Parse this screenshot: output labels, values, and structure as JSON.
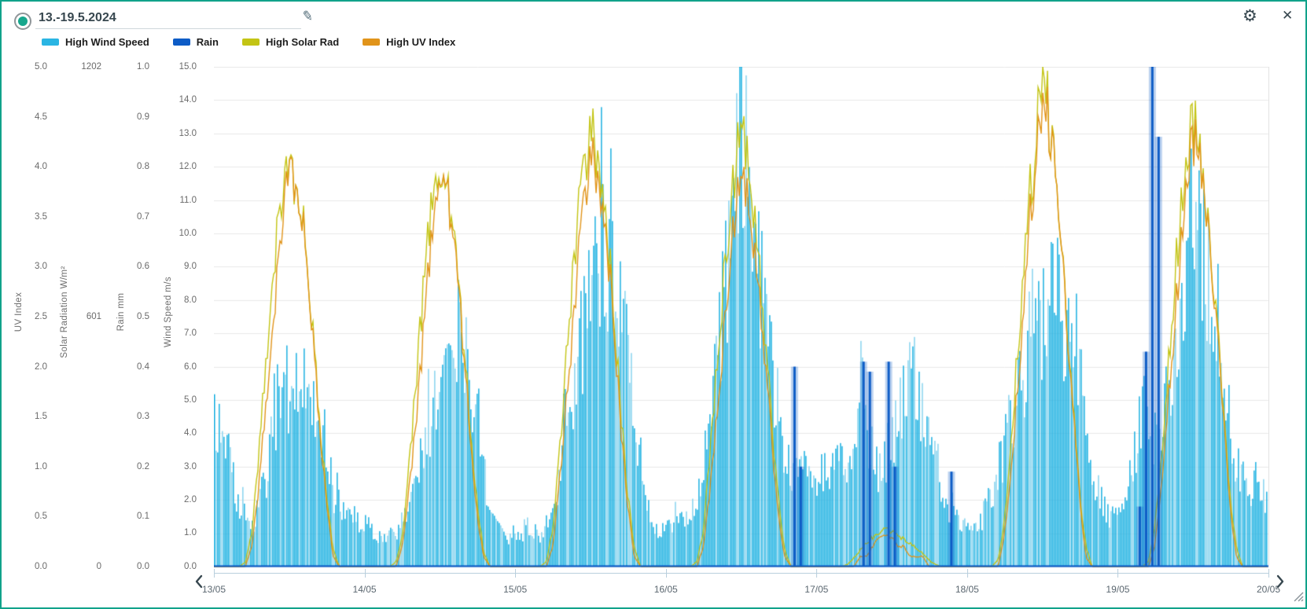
{
  "header": {
    "date_range": "13.-19.5.2024"
  },
  "icons": {
    "edit": "✎",
    "settings": "⚙",
    "close": "✕"
  },
  "colors": {
    "frame_border": "#10a28a",
    "radio_fill": "#17a78d",
    "wind": "#2ab5e3",
    "wind_light": "#8fd6ef",
    "rain": "#0d5cc6",
    "solar": "#c3c414",
    "uv": "#e1941a",
    "grid": "#e8e8e8"
  },
  "legend": [
    {
      "label": "High Wind Speed",
      "color": "#2ab5e3"
    },
    {
      "label": "Rain",
      "color": "#0d5cc6"
    },
    {
      "label": "High Solar Rad",
      "color": "#c3c414"
    },
    {
      "label": "High UV Index",
      "color": "#e1941a"
    }
  ],
  "axes": {
    "uv": {
      "title": "UV Index",
      "ticks": [
        "5.0",
        "4.5",
        "4.0",
        "3.5",
        "3.0",
        "2.5",
        "2.0",
        "1.5",
        "1.0",
        "0.5",
        "0.0"
      ]
    },
    "solar": {
      "title": "Solar Radiation W/m²",
      "ticks": [
        "1202",
        "601",
        "0"
      ]
    },
    "rain": {
      "title": "Rain mm",
      "ticks": [
        "1.0",
        "0.9",
        "0.8",
        "0.7",
        "0.6",
        "0.5",
        "0.4",
        "0.3",
        "0.2",
        "0.1",
        "0.0"
      ]
    },
    "wind": {
      "title": "Wind Speed m/s",
      "ticks": [
        "15.0",
        "14.0",
        "13.0",
        "12.0",
        "11.0",
        "10.0",
        "9.0",
        "8.0",
        "7.0",
        "6.0",
        "5.0",
        "4.0",
        "3.0",
        "2.0",
        "1.0",
        "0.0"
      ]
    }
  },
  "chart_data": {
    "type": "composite",
    "x_labels": [
      "13/05",
      "14/05",
      "15/05",
      "16/05",
      "17/05",
      "18/05",
      "19/05",
      "20/05"
    ],
    "days": 7,
    "points_per_day": 24,
    "grid": "horizontal, every 1 m/s of wind axis",
    "series": [
      {
        "name": "High Wind Speed",
        "type": "bar",
        "unit": "m/s",
        "axis_max": 15,
        "color": "#2ab5e3",
        "values": [
          4.5,
          4.0,
          3.6,
          2.6,
          1.8,
          1.5,
          1.2,
          1.8,
          2.6,
          3.4,
          4.5,
          5.0,
          5.4,
          5.8,
          6.2,
          5.6,
          5.0,
          4.6,
          3.4,
          2.2,
          1.8,
          1.8,
          1.5,
          1.3,
          1.3,
          1.1,
          0.9,
          0.9,
          1.1,
          0.9,
          1.3,
          1.8,
          2.6,
          3.4,
          4.2,
          4.8,
          5.4,
          6.0,
          6.6,
          7.2,
          6.4,
          5.6,
          4.6,
          3.0,
          1.8,
          1.3,
          1.1,
          0.9,
          0.9,
          0.9,
          1.3,
          1.1,
          0.9,
          1.3,
          1.8,
          2.8,
          4.2,
          5.4,
          6.4,
          7.4,
          8.2,
          9.0,
          9.8,
          9.2,
          8.6,
          7.8,
          6.2,
          4.2,
          2.6,
          1.8,
          1.3,
          1.1,
          1.1,
          1.3,
          1.8,
          1.3,
          1.8,
          2.2,
          3.0,
          4.6,
          6.2,
          8.0,
          9.6,
          11.2,
          14.3,
          12.0,
          10.4,
          9.0,
          7.6,
          6.2,
          4.6,
          3.4,
          3.0,
          2.6,
          3.0,
          2.6,
          2.6,
          3.0,
          2.6,
          3.0,
          3.4,
          3.0,
          3.4,
          6.7,
          4.2,
          3.4,
          3.0,
          3.4,
          3.8,
          4.6,
          5.4,
          6.0,
          5.2,
          4.6,
          3.8,
          3.0,
          2.2,
          1.8,
          1.5,
          1.3,
          1.3,
          1.1,
          1.3,
          1.8,
          2.2,
          3.0,
          3.8,
          4.6,
          5.4,
          6.0,
          6.6,
          7.2,
          7.6,
          8.0,
          8.4,
          7.8,
          7.2,
          7.8,
          6.0,
          4.2,
          3.0,
          2.2,
          1.8,
          1.5,
          1.5,
          1.8,
          2.6,
          3.8,
          5.0,
          4.2,
          3.4,
          4.2,
          5.4,
          6.6,
          7.8,
          10.2,
          11.6,
          10.6,
          9.4,
          7.6,
          6.4,
          5.0,
          3.8,
          3.0,
          2.6,
          2.2,
          2.6,
          2.2
        ]
      },
      {
        "name": "Rain",
        "type": "bar",
        "unit": "mm",
        "axis_max": 1.0,
        "color": "#0d5cc6",
        "values": [
          0,
          0,
          0,
          0,
          0,
          0,
          0,
          0,
          0,
          0,
          0,
          0,
          0,
          0,
          0,
          0,
          0,
          0,
          0,
          0,
          0,
          0,
          0,
          0,
          0,
          0,
          0,
          0,
          0,
          0,
          0,
          0,
          0,
          0,
          0,
          0,
          0,
          0,
          0,
          0,
          0,
          0,
          0,
          0,
          0,
          0,
          0,
          0,
          0,
          0,
          0,
          0,
          0,
          0,
          0,
          0,
          0,
          0,
          0,
          0,
          0,
          0,
          0,
          0,
          0,
          0,
          0,
          0,
          0,
          0,
          0,
          0,
          0,
          0,
          0,
          0,
          0,
          0,
          0,
          0,
          0,
          0,
          0,
          0,
          0,
          0,
          0,
          0,
          0,
          0,
          0,
          0,
          0.4,
          0.2,
          0,
          0,
          0,
          0,
          0,
          0,
          0,
          0,
          0,
          0.41,
          0.39,
          0,
          0,
          0.41,
          0.2,
          0,
          0,
          0,
          0,
          0,
          0,
          0,
          0,
          0.19,
          0,
          0,
          0,
          0,
          0,
          0,
          0,
          0,
          0,
          0,
          0,
          0,
          0,
          0,
          0,
          0,
          0,
          0,
          0,
          0,
          0,
          0,
          0,
          0,
          0,
          0,
          0,
          0,
          0,
          0.12,
          0.43,
          1.0,
          0.86,
          0,
          0,
          0,
          0,
          0,
          0,
          0,
          0,
          0,
          0,
          0,
          0,
          0,
          0,
          0,
          0,
          0
        ]
      },
      {
        "name": "High Solar Rad",
        "type": "line",
        "unit": "W/m²",
        "axis_max": 1202,
        "color": "#c3c414",
        "values": [
          0,
          0,
          0,
          0,
          0,
          10,
          80,
          240,
          430,
          620,
          780,
          900,
          962,
          940,
          850,
          700,
          520,
          330,
          160,
          40,
          0,
          0,
          0,
          0,
          0,
          0,
          0,
          0,
          0,
          10,
          70,
          220,
          400,
          590,
          760,
          890,
          937,
          905,
          840,
          680,
          500,
          310,
          150,
          35,
          0,
          0,
          0,
          0,
          0,
          0,
          0,
          0,
          0,
          12,
          90,
          260,
          460,
          660,
          830,
          970,
          1050,
          1010,
          910,
          750,
          560,
          350,
          170,
          45,
          0,
          0,
          0,
          0,
          0,
          0,
          0,
          0,
          0,
          12,
          85,
          250,
          450,
          640,
          820,
          950,
          1034,
          980,
          880,
          720,
          530,
          330,
          160,
          40,
          0,
          0,
          0,
          0,
          0,
          0,
          0,
          0,
          0,
          5,
          20,
          40,
          55,
          70,
          80,
          90,
          85,
          75,
          65,
          55,
          45,
          30,
          15,
          5,
          0,
          0,
          0,
          0,
          0,
          0,
          0,
          0,
          0,
          15,
          100,
          280,
          490,
          700,
          880,
          1020,
          1202,
          1100,
          960,
          790,
          590,
          370,
          180,
          50,
          0,
          0,
          0,
          0,
          0,
          0,
          0,
          0,
          0,
          12,
          90,
          260,
          460,
          650,
          840,
          990,
          1082,
          1030,
          920,
          760,
          570,
          350,
          170,
          45,
          0,
          0,
          0,
          0
        ]
      },
      {
        "name": "High UV Index",
        "type": "line",
        "unit": "index",
        "axis_max": 5,
        "color": "#e1941a",
        "values": [
          0,
          0,
          0,
          0,
          0,
          0,
          0.2,
          0.7,
          1.4,
          2.1,
          2.8,
          3.5,
          4.0,
          3.9,
          3.5,
          2.9,
          2.1,
          1.3,
          0.6,
          0.1,
          0,
          0,
          0,
          0,
          0,
          0,
          0,
          0,
          0,
          0,
          0.2,
          0.7,
          1.3,
          2.0,
          2.8,
          3.4,
          3.9,
          3.8,
          3.4,
          2.8,
          2.0,
          1.2,
          0.5,
          0.1,
          0,
          0,
          0,
          0,
          0,
          0,
          0,
          0,
          0,
          0,
          0.2,
          0.8,
          1.5,
          2.2,
          3.0,
          3.7,
          4.1,
          4.0,
          3.6,
          3.0,
          2.2,
          1.3,
          0.6,
          0.1,
          0,
          0,
          0,
          0,
          0,
          0,
          0,
          0,
          0,
          0,
          0.2,
          0.7,
          1.4,
          2.1,
          2.9,
          3.5,
          3.8,
          3.7,
          3.3,
          2.7,
          2.0,
          1.2,
          0.5,
          0.1,
          0,
          0,
          0,
          0,
          0,
          0,
          0,
          0,
          0,
          0,
          0,
          0.1,
          0.1,
          0.2,
          0.3,
          0.3,
          0.3,
          0.2,
          0.2,
          0.1,
          0.1,
          0.1,
          0,
          0,
          0,
          0,
          0,
          0,
          0,
          0,
          0,
          0,
          0,
          0,
          0.3,
          0.9,
          1.7,
          2.5,
          3.4,
          4.1,
          4.6,
          4.5,
          4.0,
          3.3,
          2.4,
          1.5,
          0.7,
          0.1,
          0,
          0,
          0,
          0,
          0,
          0,
          0,
          0,
          0,
          0,
          0.2,
          0.8,
          1.6,
          2.3,
          3.1,
          3.9,
          4.3,
          4.2,
          3.8,
          3.1,
          2.3,
          1.4,
          0.6,
          0.1,
          0,
          0,
          0,
          0
        ]
      }
    ]
  }
}
